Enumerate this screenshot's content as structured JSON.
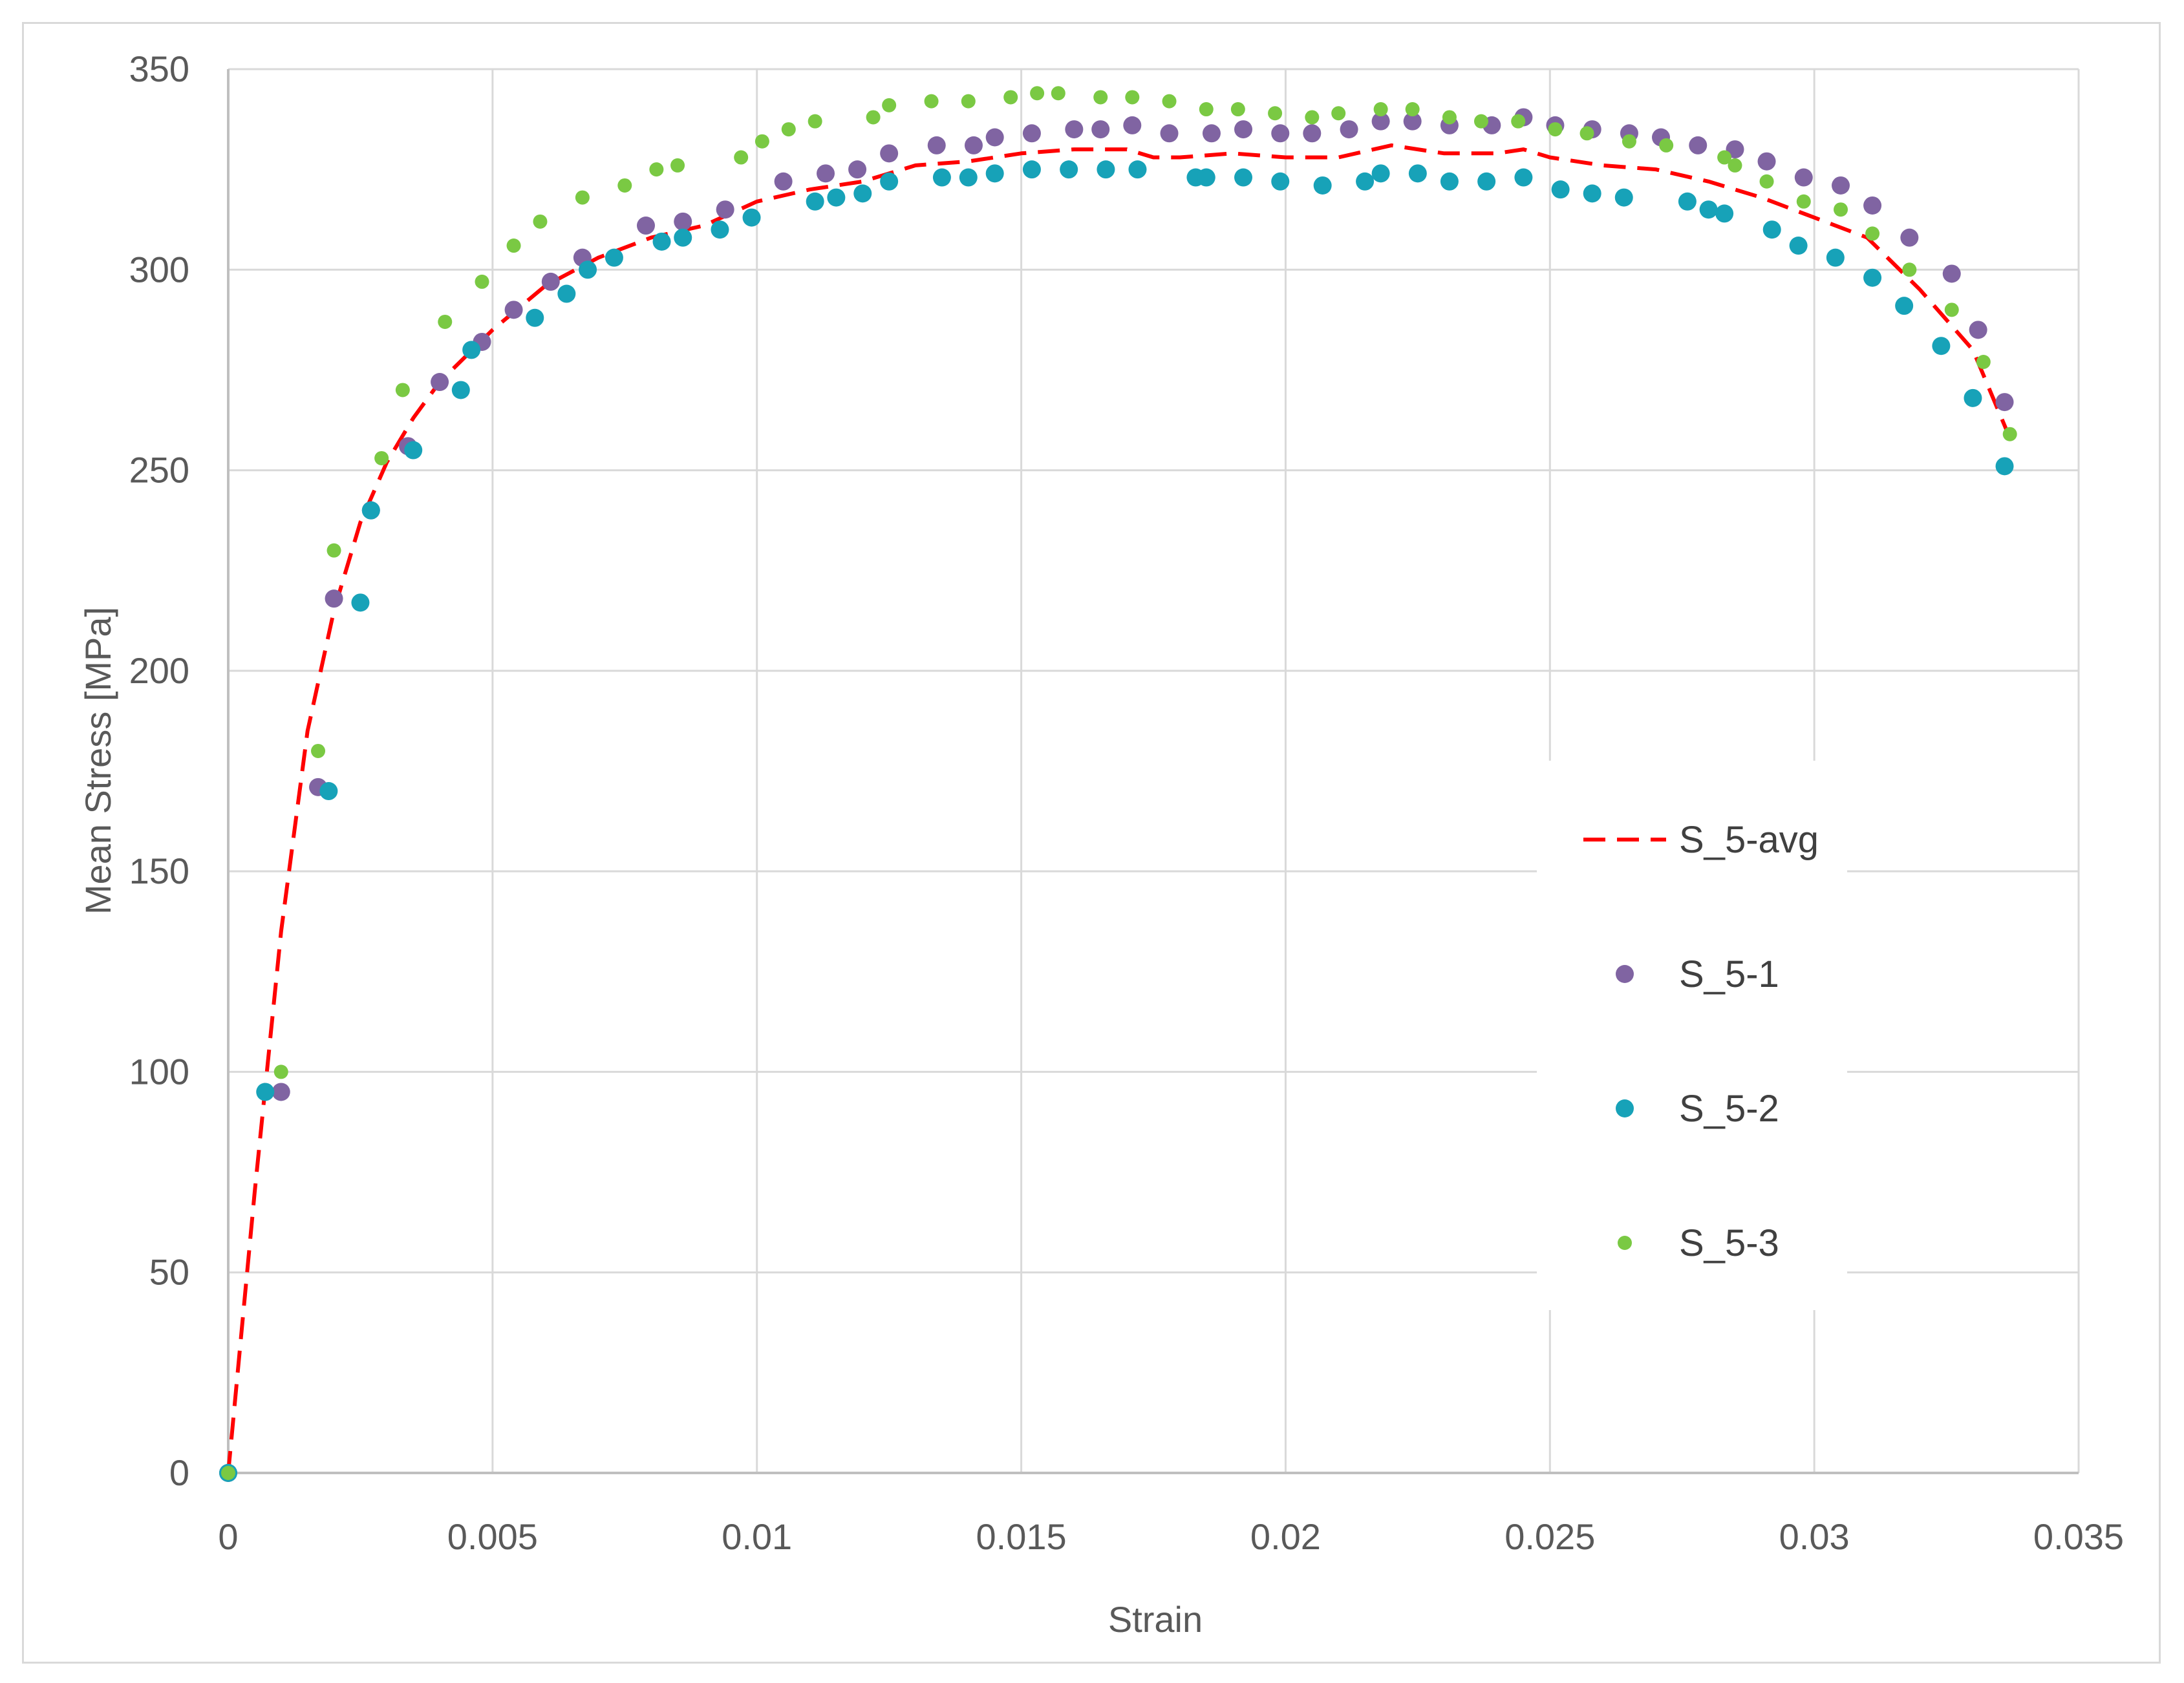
{
  "chart_data": {
    "type": "scatter",
    "title": "",
    "xlabel": "Strain",
    "ylabel": "Mean Stress [MPa]",
    "xlim": [
      0,
      0.035
    ],
    "ylim": [
      0,
      350
    ],
    "x_ticks": [
      0,
      0.005,
      0.01,
      0.015,
      0.02,
      0.025,
      0.03,
      0.035
    ],
    "x_tick_labels": [
      "0",
      "0.005",
      "0.01",
      "0.015",
      "0.02",
      "0.025",
      "0.03",
      "0.035"
    ],
    "y_ticks": [
      0,
      50,
      100,
      150,
      200,
      250,
      300,
      350
    ],
    "y_tick_labels": [
      "0",
      "50",
      "100",
      "150",
      "200",
      "250",
      "300",
      "350"
    ],
    "grid": true,
    "legend_position": "right",
    "series": [
      {
        "name": "S_5-avg",
        "style": "dashed-line",
        "color": "#ff0000",
        "x": [
          0,
          0.0005,
          0.001,
          0.0015,
          0.002,
          0.0025,
          0.003,
          0.0035,
          0.004,
          0.005,
          0.006,
          0.007,
          0.008,
          0.009,
          0.01,
          0.011,
          0.012,
          0.013,
          0.014,
          0.015,
          0.016,
          0.017,
          0.0175,
          0.018,
          0.019,
          0.02,
          0.021,
          0.022,
          0.023,
          0.024,
          0.0245,
          0.025,
          0.026,
          0.027,
          0.028,
          0.029,
          0.03,
          0.031,
          0.032,
          0.033,
          0.0337
        ],
        "y": [
          0,
          70,
          135,
          185,
          215,
          237,
          252,
          263,
          272,
          285,
          296,
          303,
          308,
          311,
          317,
          320,
          322,
          326,
          327,
          329,
          330,
          330,
          328,
          328,
          329,
          328,
          328,
          331,
          329,
          329,
          330,
          328,
          326,
          325,
          322,
          318,
          313,
          308,
          295,
          280,
          258
        ]
      },
      {
        "name": "S_5-1",
        "style": "markers",
        "color": "#8064a2",
        "x": [
          0,
          0.001,
          0.0017,
          0.002,
          0.0027,
          0.0034,
          0.004,
          0.0048,
          0.0054,
          0.0061,
          0.0067,
          0.0079,
          0.0086,
          0.0094,
          0.0105,
          0.0113,
          0.0119,
          0.0125,
          0.0134,
          0.0141,
          0.0145,
          0.0152,
          0.016,
          0.0165,
          0.0171,
          0.0178,
          0.0186,
          0.0192,
          0.0199,
          0.0205,
          0.0212,
          0.0218,
          0.0224,
          0.0231,
          0.0239,
          0.0245,
          0.0251,
          0.0258,
          0.0265,
          0.0271,
          0.0278,
          0.0285,
          0.0291,
          0.0298,
          0.0305,
          0.0311,
          0.0318,
          0.0326,
          0.0331,
          0.0336
        ],
        "y": [
          0,
          95,
          171,
          218,
          240,
          256,
          272,
          282,
          290,
          297,
          303,
          311,
          312,
          315,
          322,
          324,
          325,
          329,
          331,
          331,
          333,
          334,
          335,
          335,
          336,
          334,
          334,
          335,
          334,
          334,
          335,
          337,
          337,
          336,
          336,
          338,
          336,
          335,
          334,
          333,
          331,
          330,
          327,
          323,
          321,
          316,
          308,
          299,
          285,
          267
        ]
      },
      {
        "name": "S_5-2",
        "style": "markers",
        "color": "#17a2b8",
        "x": [
          0,
          0.0007,
          0.0019,
          0.0025,
          0.0027,
          0.0035,
          0.0044,
          0.0046,
          0.0058,
          0.0064,
          0.0068,
          0.0073,
          0.0082,
          0.0086,
          0.0093,
          0.0099,
          0.0111,
          0.0115,
          0.012,
          0.0125,
          0.0135,
          0.014,
          0.0145,
          0.0152,
          0.0159,
          0.0166,
          0.0172,
          0.0183,
          0.0185,
          0.0192,
          0.0199,
          0.0207,
          0.0215,
          0.0218,
          0.0225,
          0.0231,
          0.0238,
          0.0245,
          0.0252,
          0.0258,
          0.0264,
          0.0276,
          0.028,
          0.0283,
          0.0292,
          0.0297,
          0.0304,
          0.0311,
          0.0317,
          0.0324,
          0.033,
          0.0336
        ],
        "y": [
          0,
          95,
          170,
          217,
          240,
          255,
          270,
          280,
          288,
          294,
          300,
          303,
          307,
          308,
          310,
          313,
          317,
          318,
          319,
          322,
          323,
          323,
          324,
          325,
          325,
          325,
          325,
          323,
          323,
          323,
          322,
          321,
          322,
          324,
          324,
          322,
          322,
          323,
          320,
          319,
          318,
          317,
          315,
          314,
          310,
          306,
          303,
          298,
          291,
          281,
          268,
          251
        ]
      },
      {
        "name": "S_5-3",
        "style": "small-markers",
        "color": "#7ac943",
        "x": [
          0,
          0.001,
          0.0017,
          0.002,
          0.0029,
          0.0033,
          0.0041,
          0.0048,
          0.0054,
          0.0059,
          0.0067,
          0.0075,
          0.0081,
          0.0085,
          0.0097,
          0.0101,
          0.0106,
          0.0111,
          0.0122,
          0.0125,
          0.0133,
          0.014,
          0.0148,
          0.0153,
          0.0157,
          0.0165,
          0.0171,
          0.0178,
          0.0185,
          0.0191,
          0.0198,
          0.0205,
          0.021,
          0.0218,
          0.0224,
          0.0231,
          0.0237,
          0.0244,
          0.0251,
          0.0257,
          0.0265,
          0.0272,
          0.0283,
          0.0285,
          0.0291,
          0.0298,
          0.0305,
          0.0311,
          0.0318,
          0.0326,
          0.0332,
          0.0337
        ],
        "y": [
          0,
          100,
          180,
          230,
          253,
          270,
          287,
          297,
          306,
          312,
          318,
          321,
          325,
          326,
          328,
          332,
          335,
          337,
          338,
          341,
          342,
          342,
          343,
          344,
          344,
          343,
          343,
          342,
          340,
          340,
          339,
          338,
          339,
          340,
          340,
          338,
          337,
          337,
          335,
          334,
          332,
          331,
          328,
          326,
          322,
          317,
          315,
          309,
          300,
          290,
          277,
          259
        ]
      }
    ]
  }
}
